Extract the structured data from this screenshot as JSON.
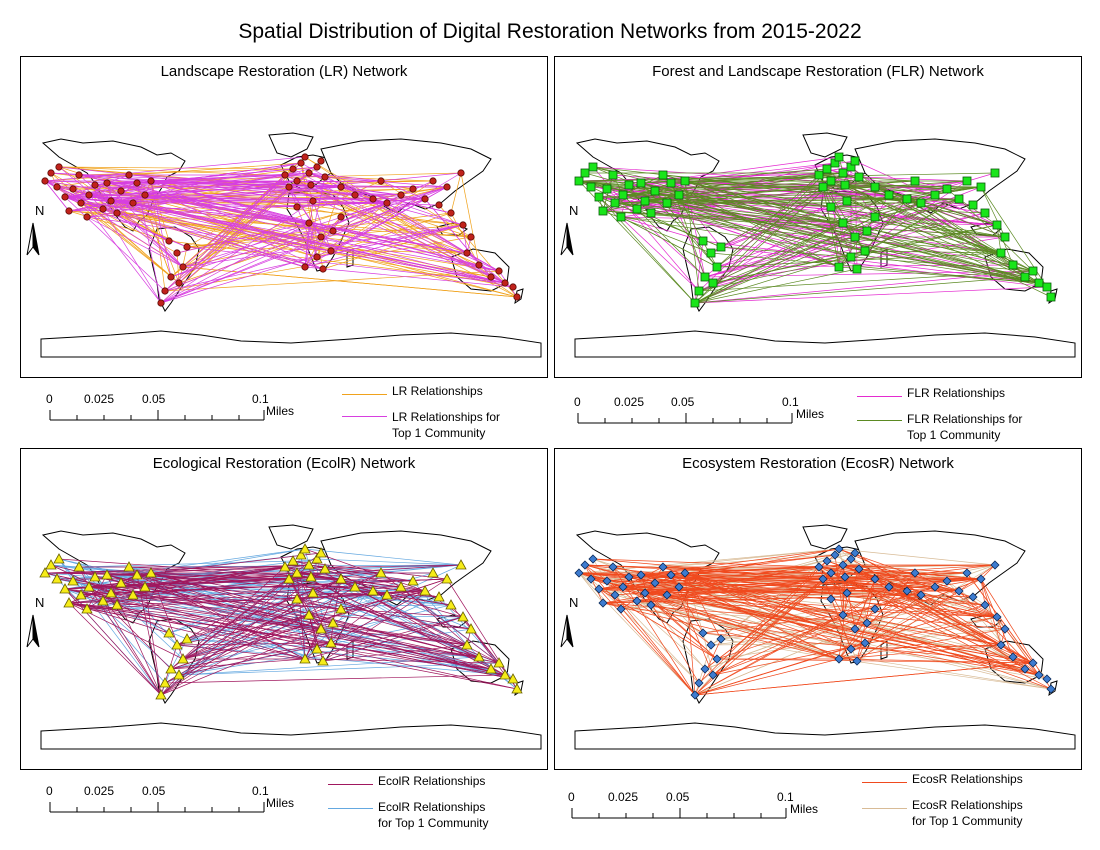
{
  "title": "Spatial Distribution of Digital Restoration Networks from 2015-2022",
  "panels": [
    {
      "title": "Landscape Restoration (LR) Network",
      "marker": "circle",
      "node_color": "#c0221b",
      "node_stroke": "#5a0a06",
      "base_edge_color": "#f0a21c",
      "top_edge_color": "#d73fe0",
      "north_label": "N"
    },
    {
      "title": "Forest and Landscape Restoration (FLR) Network",
      "marker": "square",
      "node_color": "#19e51a",
      "node_stroke": "#0c5a0c",
      "base_edge_color": "#e42bd0",
      "top_edge_color": "#5b8a22",
      "north_label": "N"
    },
    {
      "title": "Ecological Restoration (EcolR) Network",
      "marker": "triangle",
      "node_color": "#f6ec18",
      "node_stroke": "#6b6300",
      "base_edge_color": "#a0175e",
      "top_edge_color": "#64a8e0",
      "north_label": "N"
    },
    {
      "title": "Ecosystem Restoration (EcosR) Network",
      "marker": "diamond",
      "node_color": "#3d7cd0",
      "node_stroke": "#0a2a5a",
      "base_edge_color": "#f04a1e",
      "top_edge_color": "#d8bb96",
      "north_label": "N"
    }
  ],
  "scalebar": {
    "ticks": [
      "0",
      "0.025",
      "0.05",
      "0.1"
    ],
    "unit": "Miles"
  },
  "legends": [
    {
      "base": "LR Relationships",
      "top_line1": "LR Relationships for",
      "top_line2": "Top 1 Community"
    },
    {
      "base": "FLR Relationships",
      "top_line1": "FLR Relationships for",
      "top_line2": "Top 1 Community"
    },
    {
      "base": "EcolR Relationships",
      "top_line1": "EcolR Relationships",
      "top_line2": "for Top 1 Community"
    },
    {
      "base": "EcosR Relationships",
      "top_line1": "EcosR Relationships",
      "top_line2": "for Top 1 Community"
    }
  ]
}
